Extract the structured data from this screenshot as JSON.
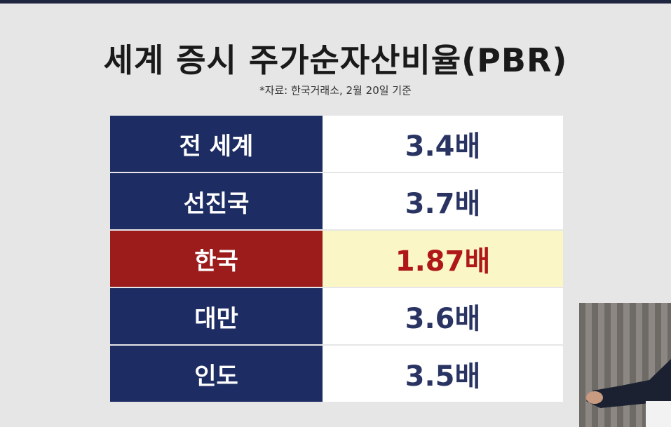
{
  "header": {
    "title": "세계 증시 주가순자산비율(PBR)",
    "source": "*자료: 한국거래소, 2월 20일 기준"
  },
  "table": {
    "rows": [
      [
        "전 세계",
        "3.4배"
      ],
      [
        "선진국",
        "3.7배"
      ],
      [
        "한국",
        "1.87배"
      ],
      [
        "대만",
        "3.6배"
      ],
      [
        "인도",
        "3.5배"
      ]
    ],
    "highlighted_row": 2
  }
}
